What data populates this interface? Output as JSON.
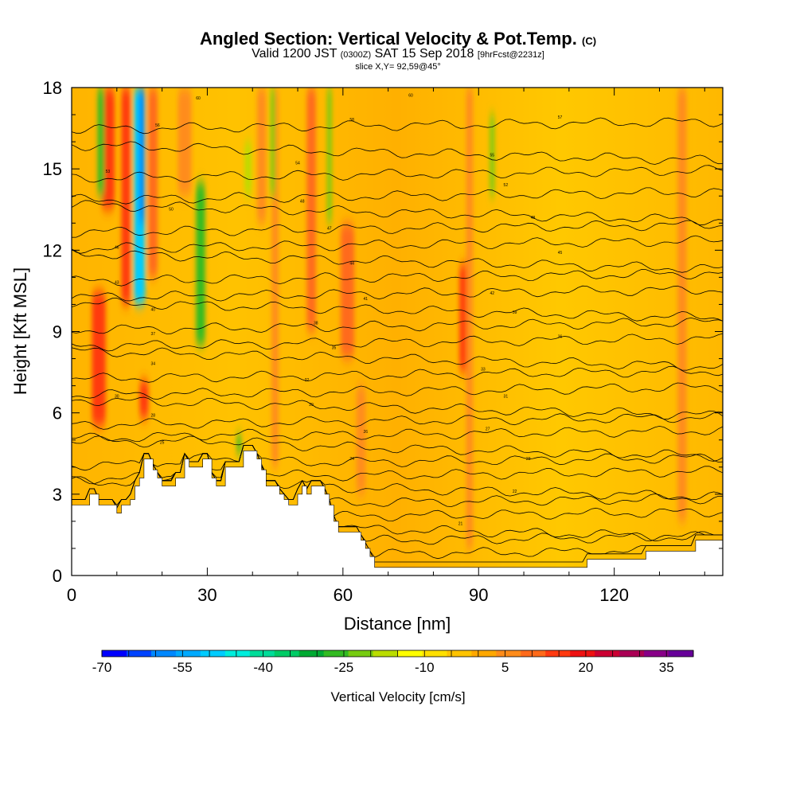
{
  "title": {
    "main": "Angled Section: Vertical Velocity & Pot.Temp.",
    "copyright": "(C)",
    "valid_prefix": "Valid 1200 JST",
    "valid_utc": "(0300Z)",
    "valid_date": "SAT 15 Sep 2018",
    "forecast_info": "[9hrFcst@2231z]",
    "slice_info": "slice X,Y= 92,59@45°"
  },
  "chart_data": {
    "type": "heatmap",
    "xlabel": "Distance [nm]",
    "ylabel": "Height [Kft MSL]",
    "xlim": [
      0,
      144
    ],
    "ylim": [
      0,
      18
    ],
    "x_ticks": [
      0,
      30,
      60,
      90,
      120
    ],
    "y_ticks": [
      0,
      3,
      6,
      9,
      12,
      15,
      18
    ],
    "terrain": [
      [
        0,
        2.6
      ],
      [
        4,
        2.6
      ],
      [
        4,
        3.0
      ],
      [
        6,
        3.0
      ],
      [
        6,
        2.6
      ],
      [
        10,
        2.6
      ],
      [
        10,
        2.3
      ],
      [
        11,
        2.3
      ],
      [
        11,
        2.6
      ],
      [
        13,
        2.6
      ],
      [
        13,
        2.8
      ],
      [
        14,
        2.8
      ],
      [
        14,
        3.3
      ],
      [
        15,
        3.3
      ],
      [
        15,
        3.6
      ],
      [
        16,
        3.6
      ],
      [
        16,
        4.3
      ],
      [
        18,
        4.3
      ],
      [
        18,
        3.9
      ],
      [
        19,
        3.9
      ],
      [
        19,
        3.6
      ],
      [
        20,
        3.6
      ],
      [
        20,
        3.3
      ],
      [
        23,
        3.3
      ],
      [
        23,
        3.6
      ],
      [
        25,
        3.6
      ],
      [
        25,
        4.3
      ],
      [
        26,
        4.3
      ],
      [
        26,
        4.0
      ],
      [
        29,
        4.0
      ],
      [
        29,
        4.3
      ],
      [
        31,
        4.3
      ],
      [
        31,
        3.6
      ],
      [
        32,
        3.6
      ],
      [
        32,
        3.3
      ],
      [
        34,
        3.3
      ],
      [
        34,
        4.0
      ],
      [
        38,
        4.0
      ],
      [
        38,
        4.6
      ],
      [
        41,
        4.6
      ],
      [
        41,
        4.3
      ],
      [
        42,
        4.3
      ],
      [
        42,
        3.9
      ],
      [
        43,
        3.9
      ],
      [
        43,
        3.3
      ],
      [
        46,
        3.3
      ],
      [
        46,
        3.0
      ],
      [
        47,
        3.0
      ],
      [
        47,
        2.8
      ],
      [
        48,
        2.8
      ],
      [
        48,
        2.6
      ],
      [
        50,
        2.6
      ],
      [
        50,
        3.0
      ],
      [
        51,
        3.0
      ],
      [
        51,
        3.3
      ],
      [
        52,
        3.3
      ],
      [
        52,
        3.0
      ],
      [
        53,
        3.0
      ],
      [
        53,
        3.3
      ],
      [
        56,
        3.3
      ],
      [
        56,
        3.0
      ],
      [
        57,
        3.0
      ],
      [
        57,
        2.6
      ],
      [
        58,
        2.6
      ],
      [
        58,
        2.0
      ],
      [
        59,
        2.0
      ],
      [
        59,
        1.6
      ],
      [
        64,
        1.6
      ],
      [
        64,
        1.3
      ],
      [
        65,
        1.3
      ],
      [
        65,
        1.0
      ],
      [
        66,
        1.0
      ],
      [
        66,
        0.7
      ],
      [
        67,
        0.7
      ],
      [
        67,
        0.3
      ],
      [
        114,
        0.3
      ],
      [
        114,
        0.6
      ],
      [
        127,
        0.6
      ],
      [
        127,
        0.9
      ],
      [
        138,
        0.9
      ],
      [
        138,
        1.3
      ],
      [
        144,
        1.3
      ]
    ],
    "updrafts": [
      {
        "x": 6,
        "width": 3,
        "y_bottom": 5.5,
        "y_top": 10.5,
        "w": 22
      },
      {
        "x": 8,
        "width": 3,
        "y_bottom": 13.5,
        "y_top": 18,
        "w": 22
      },
      {
        "x": 16,
        "width": 2,
        "y_bottom": 5.8,
        "y_top": 7.2,
        "w": 24
      },
      {
        "x": 12,
        "width": 2,
        "y_bottom": 10,
        "y_top": 18,
        "w": 20
      },
      {
        "x": 18,
        "width": 2,
        "y_bottom": 11,
        "y_top": 18,
        "w": 18
      },
      {
        "x": 45,
        "width": 1.5,
        "y_bottom": 4,
        "y_top": 18,
        "w": 14
      },
      {
        "x": 53,
        "width": 2,
        "y_bottom": 9,
        "y_top": 18,
        "w": 15
      },
      {
        "x": 61,
        "width": 3,
        "y_bottom": 8,
        "y_top": 13,
        "w": 18
      },
      {
        "x": 87,
        "width": 2.5,
        "y_bottom": 7.5,
        "y_top": 11.5,
        "w": 22
      },
      {
        "x": 88,
        "width": 1.5,
        "y_bottom": 1,
        "y_top": 18,
        "w": 12
      },
      {
        "x": 135,
        "width": 2,
        "y_bottom": 2,
        "y_top": 18,
        "w": 10
      },
      {
        "x": 25,
        "width": 3,
        "y_bottom": 14,
        "y_top": 18,
        "w": 14
      },
      {
        "x": 64,
        "width": 2,
        "y_bottom": 3,
        "y_top": 7,
        "w": 10
      },
      {
        "x": 42,
        "width": 2,
        "y_bottom": 13,
        "y_top": 18,
        "w": 12
      }
    ],
    "downdrafts": [
      {
        "x": 15,
        "width": 2.5,
        "y_bottom": 10,
        "y_top": 18,
        "w": -50
      },
      {
        "x": 15.5,
        "width": 1.2,
        "y_bottom": 13,
        "y_top": 18,
        "w": -58
      },
      {
        "x": 28.5,
        "width": 2,
        "y_bottom": 8.5,
        "y_top": 14.5,
        "w": -25
      },
      {
        "x": 6.5,
        "width": 1.5,
        "y_bottom": 14,
        "y_top": 18,
        "w": -25
      },
      {
        "x": 44.5,
        "width": 1,
        "y_bottom": 14,
        "y_top": 18,
        "w": -20
      },
      {
        "x": 57,
        "width": 1,
        "y_bottom": 13,
        "y_top": 18,
        "w": -18
      },
      {
        "x": 93,
        "width": 1,
        "y_bottom": 14,
        "y_top": 17,
        "w": -20
      },
      {
        "x": 39,
        "width": 1.5,
        "y_bottom": 14,
        "y_top": 16,
        "w": -15
      },
      {
        "x": 37,
        "width": 1,
        "y_bottom": 4.5,
        "y_top": 5.2,
        "w": -25
      }
    ],
    "isentropes": {
      "count": 29,
      "base_heights": [
        0.3,
        0.8,
        1.3,
        1.7,
        2.2,
        2.7,
        3.2,
        3.7,
        4.2,
        4.7,
        5.2,
        5.7,
        6.2,
        6.8,
        7.4,
        8.0,
        8.6,
        9.2,
        9.8,
        10.4,
        11.0,
        11.6,
        12.2,
        12.8,
        13.4,
        14.0,
        14.8,
        15.6,
        16.6
      ],
      "bump_center_x": 34,
      "bump_width": 12,
      "bump_amp": 0.6
    },
    "contour_labels": [
      {
        "text": "60",
        "x": 28,
        "y": 17.6
      },
      {
        "text": "60",
        "x": 75,
        "y": 17.7
      },
      {
        "text": "58",
        "x": 62,
        "y": 16.8
      },
      {
        "text": "57",
        "x": 108,
        "y": 16.9
      },
      {
        "text": "56",
        "x": 19,
        "y": 16.6
      },
      {
        "text": "55",
        "x": 93,
        "y": 15.5
      },
      {
        "text": "54",
        "x": 50,
        "y": 15.2
      },
      {
        "text": "53",
        "x": 8,
        "y": 14.9
      },
      {
        "text": "52",
        "x": 96,
        "y": 14.4
      },
      {
        "text": "50",
        "x": 22,
        "y": 13.5
      },
      {
        "text": "48",
        "x": 51,
        "y": 13.8
      },
      {
        "text": "48",
        "x": 102,
        "y": 13.2
      },
      {
        "text": "47",
        "x": 57,
        "y": 12.8
      },
      {
        "text": "46",
        "x": 10,
        "y": 12.1
      },
      {
        "text": "45",
        "x": 108,
        "y": 11.9
      },
      {
        "text": "44",
        "x": 62,
        "y": 11.5
      },
      {
        "text": "43",
        "x": 10,
        "y": 10.8
      },
      {
        "text": "42",
        "x": 93,
        "y": 10.4
      },
      {
        "text": "41",
        "x": 65,
        "y": 10.2
      },
      {
        "text": "40",
        "x": 18,
        "y": 9.8
      },
      {
        "text": "39",
        "x": 98,
        "y": 9.7
      },
      {
        "text": "38",
        "x": 54,
        "y": 9.3
      },
      {
        "text": "37",
        "x": 18,
        "y": 8.9
      },
      {
        "text": "36",
        "x": 108,
        "y": 8.8
      },
      {
        "text": "35",
        "x": 58,
        "y": 8.4
      },
      {
        "text": "34",
        "x": 18,
        "y": 7.8
      },
      {
        "text": "33",
        "x": 91,
        "y": 7.6
      },
      {
        "text": "32",
        "x": 52,
        "y": 7.2
      },
      {
        "text": "31",
        "x": 96,
        "y": 6.6
      },
      {
        "text": "30",
        "x": 10,
        "y": 6.6
      },
      {
        "text": "29",
        "x": 53,
        "y": 6.3
      },
      {
        "text": "28",
        "x": 18,
        "y": 5.9
      },
      {
        "text": "27",
        "x": 92,
        "y": 5.4
      },
      {
        "text": "26",
        "x": 65,
        "y": 5.3
      },
      {
        "text": "25",
        "x": 20,
        "y": 4.9
      },
      {
        "text": "24",
        "x": 62,
        "y": 4.3
      },
      {
        "text": "23",
        "x": 101,
        "y": 4.3
      },
      {
        "text": "22",
        "x": 98,
        "y": 3.1
      },
      {
        "text": "21",
        "x": 86,
        "y": 1.9
      }
    ],
    "colorbar": {
      "label": "Vertical Velocity [cm/s]",
      "min": -70,
      "max": 40,
      "step": 5,
      "tick_labels": [
        -70,
        -55,
        -40,
        -25,
        -10,
        5,
        20,
        35
      ],
      "colors": [
        "#0000ff",
        "#0044ff",
        "#0088ff",
        "#00aaff",
        "#00ccff",
        "#00eedd",
        "#00dd99",
        "#00cc66",
        "#00aa33",
        "#33bb22",
        "#77cc11",
        "#bbdd00",
        "#ffff00",
        "#ffe000",
        "#ffc400",
        "#ffa800",
        "#ff8c1a",
        "#ff6a1a",
        "#ff3a10",
        "#ee1111",
        "#cc0033",
        "#aa0055",
        "#880088",
        "#660099"
      ]
    }
  }
}
